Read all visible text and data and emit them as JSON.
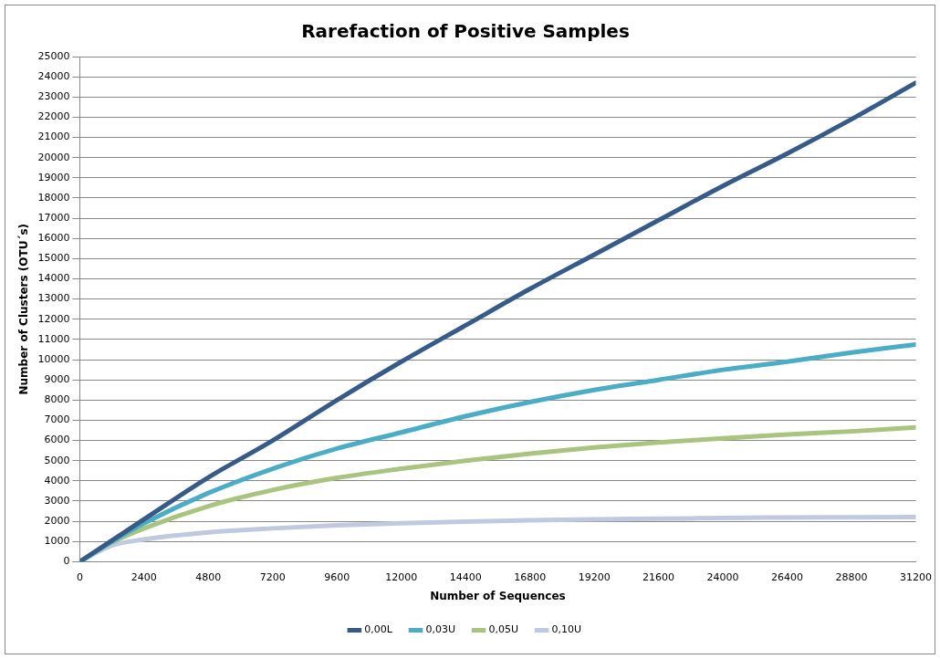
{
  "chart_data": {
    "type": "line",
    "title": "Rarefaction of Positive Samples",
    "xlabel": "Number of Sequences",
    "ylabel": "Number of Clusters (OTU´s)",
    "x": [
      0,
      1200,
      2400,
      4800,
      7200,
      9600,
      12000,
      14400,
      16800,
      19200,
      21600,
      24000,
      26400,
      28800,
      31200
    ],
    "series": [
      {
        "name": "0,00L",
        "color": "#375b89",
        "values": [
          0,
          1050,
          2100,
          4170,
          6000,
          8000,
          9900,
          11700,
          13500,
          15200,
          16900,
          18600,
          20200,
          21900,
          23700
        ]
      },
      {
        "name": "0,03U",
        "color": "#4bacc6",
        "values": [
          0,
          1000,
          1900,
          3400,
          4600,
          5600,
          6400,
          7200,
          7900,
          8500,
          9000,
          9500,
          9900,
          10350,
          10750
        ]
      },
      {
        "name": "0,05U",
        "color": "#a9c47f",
        "values": [
          0,
          950,
          1650,
          2750,
          3550,
          4150,
          4600,
          5000,
          5350,
          5650,
          5900,
          6100,
          6300,
          6450,
          6650
        ]
      },
      {
        "name": "0,10U",
        "color": "#bfc9df",
        "values": [
          0,
          800,
          1100,
          1450,
          1650,
          1800,
          1900,
          1980,
          2050,
          2100,
          2130,
          2160,
          2190,
          2200,
          2210
        ]
      }
    ],
    "xlim": [
      0,
      31200
    ],
    "xticks": [
      0,
      2400,
      4800,
      7200,
      9600,
      12000,
      14400,
      16800,
      19200,
      21600,
      24000,
      26400,
      28800,
      31200
    ],
    "ylim": [
      0,
      25000
    ],
    "yticks": [
      0,
      1000,
      2000,
      3000,
      4000,
      5000,
      6000,
      7000,
      8000,
      9000,
      10000,
      11000,
      12000,
      13000,
      14000,
      15000,
      16000,
      17000,
      18000,
      19000,
      20000,
      21000,
      22000,
      23000,
      24000,
      25000
    ],
    "grid": "y",
    "legend": "bottom",
    "marker": "none",
    "line_style": "solid"
  }
}
